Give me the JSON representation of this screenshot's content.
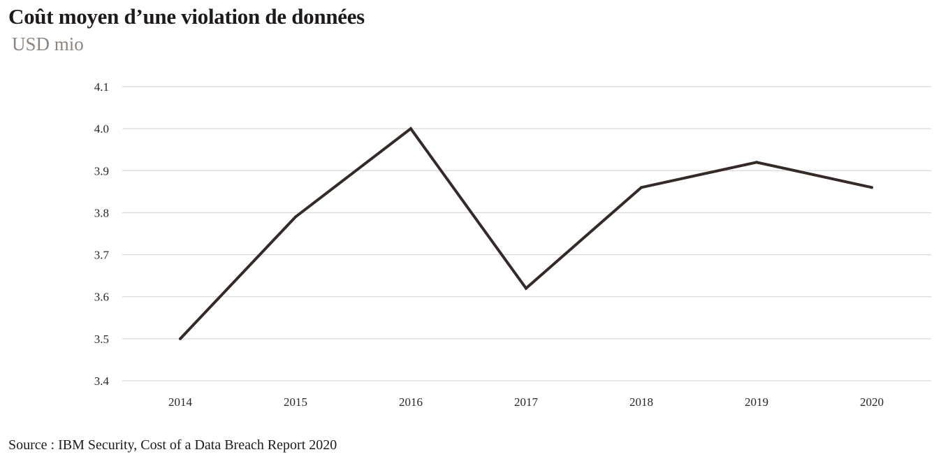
{
  "chart_data": {
    "type": "line",
    "title": "Coût moyen d’une violation de données",
    "subtitle": "USD mio",
    "x": [
      "2014",
      "2015",
      "2016",
      "2017",
      "2018",
      "2019",
      "2020"
    ],
    "series": [
      {
        "values": [
          3.5,
          3.79,
          4.0,
          3.62,
          3.86,
          3.92,
          3.86
        ]
      }
    ],
    "ylim": [
      3.4,
      4.1
    ],
    "yticks": [
      "3.4",
      "3.5",
      "3.6",
      "3.7",
      "3.8",
      "3.9",
      "4.0",
      "4.1"
    ],
    "grid": true,
    "line_color": "#352a28",
    "source": "Source : IBM Security, Cost of a Data Breach Report 2020"
  }
}
